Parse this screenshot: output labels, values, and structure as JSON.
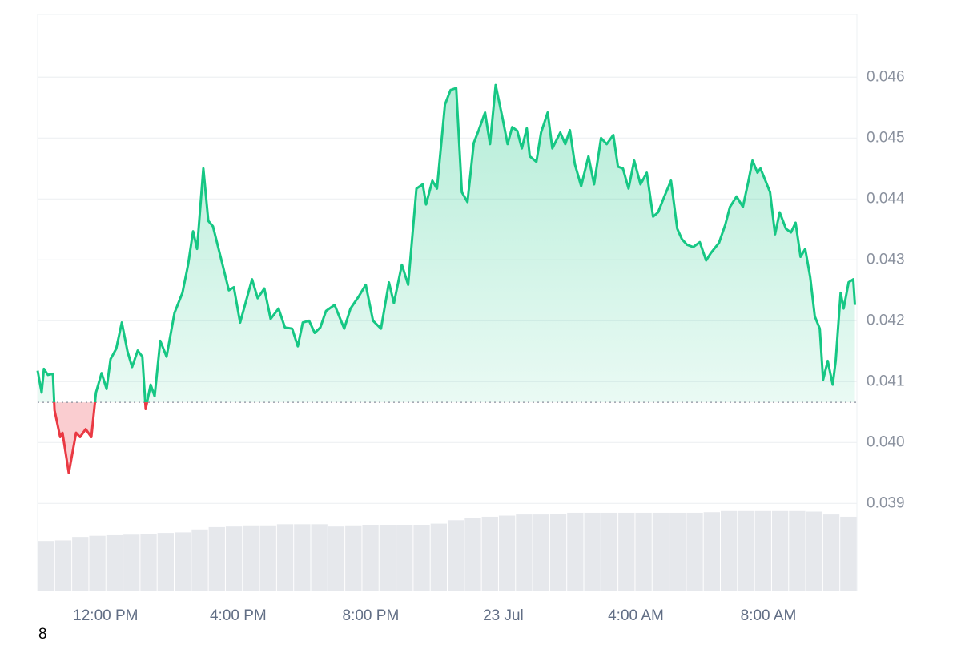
{
  "chart_data": {
    "type": "line",
    "x": [
      9.95,
      10.07,
      10.14,
      10.26,
      10.41,
      10.46,
      10.63,
      10.7,
      10.89,
      11.11,
      11.23,
      11.4,
      11.57,
      11.71,
      11.88,
      12.03,
      12.15,
      12.32,
      12.49,
      12.66,
      12.8,
      12.97,
      13.11,
      13.21,
      13.36,
      13.48,
      13.65,
      13.84,
      14.08,
      14.32,
      14.49,
      14.64,
      14.76,
      14.95,
      15.1,
      15.24,
      15.53,
      15.72,
      15.87,
      16.06,
      16.42,
      16.59,
      16.79,
      16.98,
      17.22,
      17.41,
      17.63,
      17.8,
      17.95,
      18.14,
      18.31,
      18.48,
      18.65,
      18.91,
      19.2,
      19.39,
      19.64,
      19.85,
      20.07,
      20.31,
      20.55,
      20.7,
      20.94,
      21.13,
      21.38,
      21.57,
      21.67,
      21.86,
      22,
      22.24,
      22.41,
      22.58,
      22.75,
      22.92,
      23.11,
      23.26,
      23.45,
      23.6,
      23.77,
      23.98,
      24.13,
      24.27,
      24.42,
      24.56,
      24.71,
      24.8,
      25,
      25.14,
      25.34,
      25.48,
      25.72,
      25.87,
      26.01,
      26.16,
      26.35,
      26.57,
      26.74,
      26.95,
      27.12,
      27.32,
      27.46,
      27.61,
      27.78,
      27.95,
      28.14,
      28.33,
      28.52,
      28.67,
      28.86,
      29.06,
      29.25,
      29.39,
      29.54,
      29.73,
      29.93,
      30.12,
      30.26,
      30.51,
      30.7,
      30.84,
      31.04,
      31.23,
      31.4,
      31.52,
      31.67,
      31.76,
      31.91,
      32.05,
      32.2,
      32.34,
      32.53,
      32.68,
      32.82,
      32.97,
      33.11,
      33.26,
      33.4,
      33.55,
      33.65,
      33.79,
      33.94,
      34.03,
      34.18,
      34.27,
      34.42,
      34.56,
      34.61
    ],
    "series": [
      {
        "color": "#16c784",
        "down_color": "#ea3943",
        "values": [
          0.04118,
          0.04082,
          0.04121,
          0.04111,
          0.04113,
          0.04053,
          0.04009,
          0.04016,
          0.0395,
          0.04016,
          0.04009,
          0.04022,
          0.04009,
          0.04082,
          0.04114,
          0.04088,
          0.04137,
          0.04154,
          0.04197,
          0.0415,
          0.04124,
          0.04151,
          0.04141,
          0.04055,
          0.04095,
          0.04076,
          0.04167,
          0.04141,
          0.04213,
          0.04246,
          0.04292,
          0.04347,
          0.04318,
          0.0445,
          0.04364,
          0.04355,
          0.04292,
          0.0425,
          0.04255,
          0.04197,
          0.04268,
          0.04237,
          0.04253,
          0.04203,
          0.0422,
          0.04189,
          0.04187,
          0.04158,
          0.04197,
          0.042,
          0.0418,
          0.04189,
          0.04216,
          0.04226,
          0.04187,
          0.0422,
          0.0424,
          0.04259,
          0.042,
          0.04187,
          0.04263,
          0.04229,
          0.04292,
          0.04259,
          0.04417,
          0.04424,
          0.04391,
          0.0443,
          0.04417,
          0.04555,
          0.04579,
          0.04582,
          0.04411,
          0.04395,
          0.04492,
          0.04513,
          0.04542,
          0.0449,
          0.04587,
          0.04532,
          0.0449,
          0.04518,
          0.04512,
          0.04483,
          0.04516,
          0.0447,
          0.04461,
          0.04509,
          0.04542,
          0.04483,
          0.04509,
          0.0449,
          0.04513,
          0.04457,
          0.04421,
          0.0447,
          0.04424,
          0.045,
          0.0449,
          0.04505,
          0.04453,
          0.0445,
          0.04417,
          0.04463,
          0.04424,
          0.04443,
          0.04371,
          0.04378,
          0.04404,
          0.0443,
          0.04351,
          0.04334,
          0.04325,
          0.04321,
          0.04329,
          0.04299,
          0.04311,
          0.04328,
          0.04358,
          0.04387,
          0.04404,
          0.04387,
          0.0443,
          0.04463,
          0.04443,
          0.0445,
          0.0443,
          0.04411,
          0.04342,
          0.04378,
          0.04351,
          0.04345,
          0.04361,
          0.04305,
          0.04318,
          0.04272,
          0.04207,
          0.04187,
          0.04103,
          0.04134,
          0.04095,
          0.04134,
          0.04246,
          0.0422,
          0.04263,
          0.04268,
          0.04226
        ]
      }
    ],
    "baseline": 0.04066,
    "volume": {
      "color": "#e6e8ec",
      "ylim": [
        0,
        100
      ],
      "values": [
        8.6,
        8.7,
        9.3,
        9.5,
        9.6,
        9.7,
        9.8,
        10.0,
        10.1,
        10.6,
        11.0,
        11.1,
        11.3,
        11.3,
        11.5,
        11.5,
        11.5,
        11.1,
        11.3,
        11.4,
        11.4,
        11.4,
        11.4,
        11.6,
        12.2,
        12.6,
        12.8,
        13.0,
        13.2,
        13.2,
        13.3,
        13.5,
        13.5,
        13.5,
        13.5,
        13.5,
        13.5,
        13.5,
        13.5,
        13.6,
        13.8,
        13.8,
        13.8,
        13.8,
        13.8,
        13.7,
        13.2,
        12.8
      ]
    },
    "xlim": [
      9.95,
      34.67
    ],
    "xticks": [
      {
        "value": 12,
        "label": "12:00 PM"
      },
      {
        "value": 16,
        "label": "4:00 PM"
      },
      {
        "value": 20,
        "label": "8:00 PM"
      },
      {
        "value": 24,
        "label": "23 Jul"
      },
      {
        "value": 28,
        "label": "4:00 AM"
      },
      {
        "value": 32,
        "label": "8:00 AM"
      }
    ],
    "ylim": [
      0.03757,
      0.04703
    ],
    "yticks": [
      0.039,
      {
        "value": 0.04,
        "label": "0.040"
      },
      0.041,
      0.042,
      0.043,
      0.044,
      0.045,
      0.046
    ],
    "grid": true,
    "footnote": "8"
  }
}
